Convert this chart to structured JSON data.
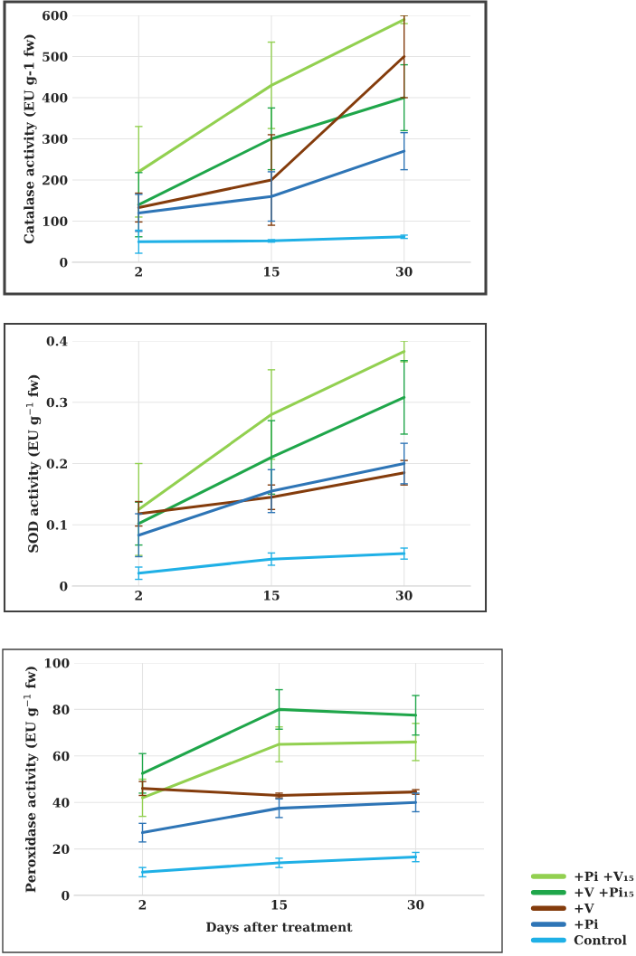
{
  "chart_data": [
    {
      "type": "line",
      "ylabel": "Catalase activity (EU g-1 fw)",
      "categories": [
        "2",
        "15",
        "30"
      ],
      "ylim": [
        0,
        600
      ],
      "yticks": [
        0,
        100,
        200,
        300,
        400,
        500,
        600
      ],
      "grid": true,
      "series": [
        {
          "color": "#92d050",
          "values": [
            220,
            430,
            590
          ],
          "errors": [
            110,
            105,
            10
          ]
        },
        {
          "color": "#1fa64a",
          "values": [
            140,
            300,
            400
          ],
          "errors": [
            78,
            75,
            80
          ]
        },
        {
          "color": "#843c0c",
          "values": [
            133,
            200,
            500
          ],
          "errors": [
            35,
            110,
            100
          ]
        },
        {
          "color": "#2e75b6",
          "values": [
            120,
            160,
            270
          ],
          "errors": [
            45,
            60,
            45
          ]
        },
        {
          "color": "#1fb0e6",
          "values": [
            50,
            52,
            62
          ],
          "errors": [
            28,
            3,
            4
          ]
        }
      ]
    },
    {
      "type": "line",
      "ylabel": "SOD activity (EU g$^{−1}$ fw)",
      "categories": [
        "2",
        "15",
        "30"
      ],
      "ylim": [
        0,
        0.4
      ],
      "yticks": [
        {
          "value": 0,
          "label": "0"
        },
        0.1,
        0.2,
        0.3,
        0.4
      ],
      "grid": true,
      "series": [
        {
          "color": "#92d050",
          "values": [
            0.125,
            0.28,
            0.383
          ],
          "errors": [
            0.075,
            0.073,
            0.017
          ]
        },
        {
          "color": "#1fa64a",
          "values": [
            0.102,
            0.21,
            0.308
          ],
          "errors": [
            0.035,
            0.06,
            0.06
          ]
        },
        {
          "color": "#843c0c",
          "values": [
            0.118,
            0.145,
            0.185
          ],
          "errors": [
            0.02,
            0.02,
            0.02
          ]
        },
        {
          "color": "#2e75b6",
          "values": [
            0.083,
            0.155,
            0.2
          ],
          "errors": [
            0.035,
            0.035,
            0.033
          ]
        },
        {
          "color": "#1fb0e6",
          "values": [
            0.021,
            0.044,
            0.053
          ],
          "errors": [
            0.01,
            0.01,
            0.009
          ]
        }
      ]
    },
    {
      "type": "line",
      "xlabel": "Days after treatment",
      "ylabel": "Peroxidase activity (EU g$^{−1}$ fw)",
      "categories": [
        "2",
        "15",
        "30"
      ],
      "ylim": [
        0,
        100
      ],
      "yticks": [
        0,
        20,
        40,
        60,
        80,
        100
      ],
      "grid": true,
      "legend": "bottom right",
      "series": [
        {
          "name": "+Pi +V₁₅",
          "color": "#92d050",
          "values": [
            42,
            65,
            66
          ],
          "errors": [
            8,
            7.5,
            8
          ]
        },
        {
          "name": "+V +Pi₁₅",
          "color": "#1fa64a",
          "values": [
            52.5,
            80,
            77.5
          ],
          "errors": [
            8.5,
            8.5,
            8.5
          ]
        },
        {
          "name": "+V",
          "color": "#843c0c",
          "values": [
            46,
            43,
            44.5
          ],
          "errors": [
            3,
            1,
            1
          ]
        },
        {
          "name": "+Pi",
          "color": "#2e75b6",
          "values": [
            27,
            37.5,
            40
          ],
          "errors": [
            4,
            4,
            4
          ]
        },
        {
          "name": "Control",
          "color": "#1fb0e6",
          "values": [
            10,
            14,
            16.5
          ],
          "errors": [
            2,
            2,
            2
          ]
        }
      ]
    }
  ]
}
